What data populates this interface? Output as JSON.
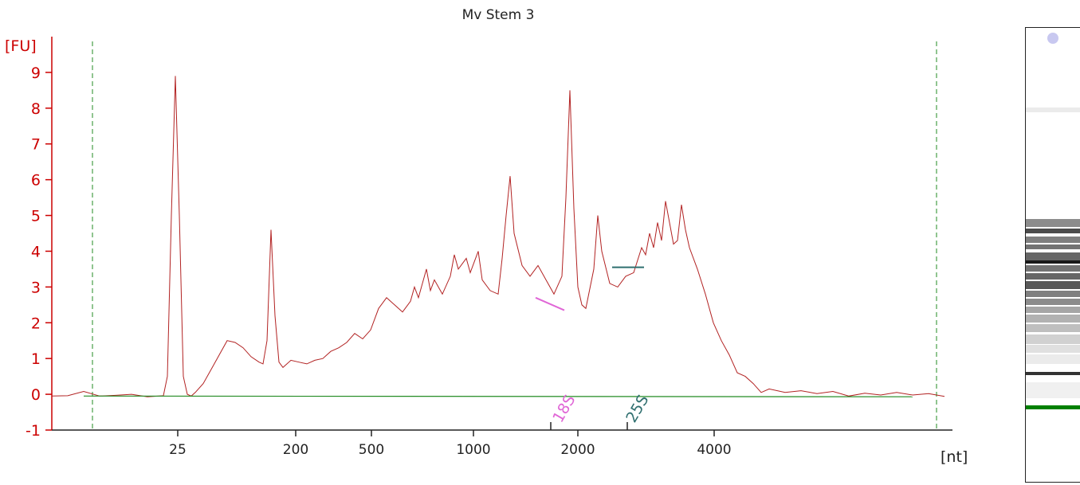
{
  "chart_data": {
    "type": "line",
    "title": "Mv Stem 3",
    "ylabel": "[FU]",
    "xlabel": "[nt]",
    "ylim": [
      -1,
      10
    ],
    "y_ticks": [
      -1,
      0,
      1,
      2,
      3,
      4,
      5,
      6,
      7,
      8,
      9
    ],
    "x_ticks": [
      "25",
      "200",
      "500",
      "1000",
      "2000",
      "4000"
    ],
    "series": [
      {
        "color": "#b22222",
        "points": [
          [
            0.0,
            -0.05
          ],
          [
            0.02,
            -0.04
          ],
          [
            0.04,
            0.08
          ],
          [
            0.06,
            -0.05
          ],
          [
            0.08,
            -0.03
          ],
          [
            0.1,
            0.0
          ],
          [
            0.12,
            -0.07
          ],
          [
            0.14,
            -0.04
          ],
          [
            0.145,
            0.5
          ],
          [
            0.15,
            5.0
          ],
          [
            0.155,
            8.9
          ],
          [
            0.16,
            5.0
          ],
          [
            0.165,
            0.5
          ],
          [
            0.17,
            0.0
          ],
          [
            0.175,
            -0.05
          ],
          [
            0.18,
            0.05
          ],
          [
            0.19,
            0.3
          ],
          [
            0.2,
            0.7
          ],
          [
            0.21,
            1.1
          ],
          [
            0.22,
            1.5
          ],
          [
            0.23,
            1.45
          ],
          [
            0.24,
            1.3
          ],
          [
            0.25,
            1.05
          ],
          [
            0.26,
            0.9
          ],
          [
            0.265,
            0.85
          ],
          [
            0.27,
            1.5
          ],
          [
            0.275,
            4.6
          ],
          [
            0.28,
            2.2
          ],
          [
            0.285,
            0.9
          ],
          [
            0.29,
            0.75
          ],
          [
            0.3,
            0.95
          ],
          [
            0.31,
            0.9
          ],
          [
            0.32,
            0.85
          ],
          [
            0.33,
            0.95
          ],
          [
            0.34,
            1.0
          ],
          [
            0.35,
            1.2
          ],
          [
            0.36,
            1.3
          ],
          [
            0.37,
            1.45
          ],
          [
            0.38,
            1.7
          ],
          [
            0.39,
            1.55
          ],
          [
            0.4,
            1.8
          ],
          [
            0.41,
            2.4
          ],
          [
            0.42,
            2.7
          ],
          [
            0.43,
            2.5
          ],
          [
            0.44,
            2.3
          ],
          [
            0.45,
            2.6
          ],
          [
            0.455,
            3.0
          ],
          [
            0.46,
            2.7
          ],
          [
            0.47,
            3.5
          ],
          [
            0.475,
            2.9
          ],
          [
            0.48,
            3.2
          ],
          [
            0.49,
            2.8
          ],
          [
            0.5,
            3.3
          ],
          [
            0.505,
            3.9
          ],
          [
            0.51,
            3.5
          ],
          [
            0.52,
            3.8
          ],
          [
            0.525,
            3.4
          ],
          [
            0.53,
            3.7
          ],
          [
            0.535,
            4.0
          ],
          [
            0.54,
            3.2
          ],
          [
            0.55,
            2.9
          ],
          [
            0.56,
            2.8
          ],
          [
            0.565,
            3.8
          ],
          [
            0.57,
            5.0
          ],
          [
            0.575,
            6.1
          ],
          [
            0.58,
            4.5
          ],
          [
            0.59,
            3.6
          ],
          [
            0.6,
            3.3
          ],
          [
            0.61,
            3.6
          ],
          [
            0.62,
            3.2
          ],
          [
            0.63,
            2.8
          ],
          [
            0.64,
            3.3
          ],
          [
            0.645,
            5.5
          ],
          [
            0.65,
            8.5
          ],
          [
            0.655,
            5.2
          ],
          [
            0.66,
            3.0
          ],
          [
            0.665,
            2.5
          ],
          [
            0.67,
            2.4
          ],
          [
            0.68,
            3.5
          ],
          [
            0.685,
            5.0
          ],
          [
            0.69,
            4.0
          ],
          [
            0.7,
            3.1
          ],
          [
            0.71,
            3.0
          ],
          [
            0.72,
            3.3
          ],
          [
            0.73,
            3.4
          ],
          [
            0.74,
            4.1
          ],
          [
            0.745,
            3.9
          ],
          [
            0.75,
            4.5
          ],
          [
            0.755,
            4.1
          ],
          [
            0.76,
            4.8
          ],
          [
            0.765,
            4.3
          ],
          [
            0.77,
            5.4
          ],
          [
            0.775,
            4.8
          ],
          [
            0.78,
            4.2
          ],
          [
            0.785,
            4.3
          ],
          [
            0.79,
            5.3
          ],
          [
            0.795,
            4.6
          ],
          [
            0.8,
            4.1
          ],
          [
            0.81,
            3.5
          ],
          [
            0.82,
            2.8
          ],
          [
            0.83,
            2.0
          ],
          [
            0.84,
            1.5
          ],
          [
            0.85,
            1.1
          ],
          [
            0.86,
            0.6
          ],
          [
            0.87,
            0.5
          ],
          [
            0.88,
            0.3
          ],
          [
            0.89,
            0.05
          ],
          [
            0.9,
            0.15
          ],
          [
            0.92,
            0.05
          ],
          [
            0.94,
            0.1
          ],
          [
            0.96,
            0.02
          ],
          [
            0.98,
            0.08
          ],
          [
            1.0,
            -0.05
          ],
          [
            1.02,
            0.03
          ],
          [
            1.04,
            -0.02
          ],
          [
            1.06,
            0.05
          ],
          [
            1.08,
            -0.02
          ],
          [
            1.1,
            0.02
          ],
          [
            1.12,
            -0.06
          ]
        ]
      },
      {
        "color": "#228b22",
        "points": [
          [
            0.04,
            -0.05
          ],
          [
            1.08,
            -0.07
          ]
        ]
      }
    ]
  },
  "markers": [
    {
      "label": "18S",
      "color": "#e066d6"
    },
    {
      "label": "25S",
      "color": "#2f6f6f"
    }
  ],
  "colors": {
    "axis": "#cc0000",
    "trace": "#b22222",
    "baseline": "#228b22",
    "window_lines": "#228b22",
    "gel_marker": "#008000"
  }
}
